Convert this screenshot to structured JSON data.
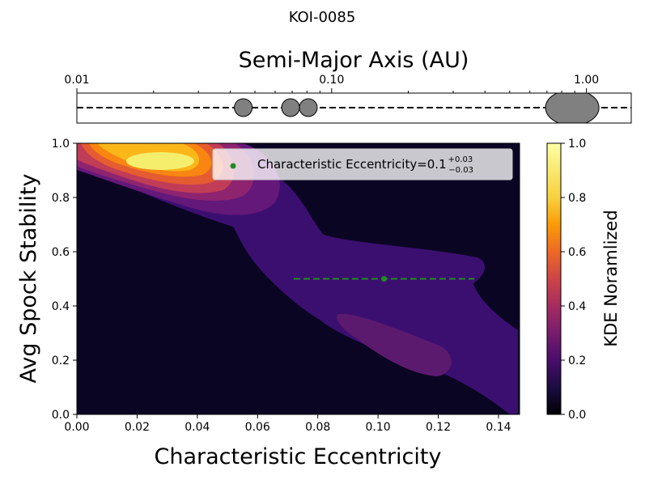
{
  "chart_data": [
    {
      "type": "scatter",
      "title": "KOI-0085",
      "xlabel": "Semi-Major Axis (AU)",
      "xscale": "log",
      "xlim": [
        0.01,
        1.5
      ],
      "xticks": [
        {
          "value": 0.01,
          "label": "0.01"
        },
        {
          "value": 0.1,
          "label": "0.10"
        },
        {
          "value": 1.0,
          "label": "1.00"
        }
      ],
      "planets": [
        {
          "a": 0.045,
          "size": "small"
        },
        {
          "a": 0.069,
          "size": "small"
        },
        {
          "a": 0.081,
          "size": "small"
        },
        {
          "a": 0.88,
          "size": "large"
        }
      ],
      "point_color": "#808080"
    },
    {
      "type": "heatmap",
      "xlabel": "Characteristic Eccentricity",
      "ylabel": "Avg Spock Stability",
      "xlim": [
        0.0,
        0.147
      ],
      "ylim": [
        0.0,
        1.0
      ],
      "xticks": [
        "0.00",
        "0.02",
        "0.04",
        "0.06",
        "0.08",
        "0.10",
        "0.12",
        "0.14"
      ],
      "yticks": [
        "0.0",
        "0.2",
        "0.4",
        "0.6",
        "0.8",
        "1.0"
      ],
      "colormap": "inferno",
      "point": {
        "x": 0.102,
        "y": 0.5,
        "xerr_minus": 0.03,
        "xerr_plus": 0.03,
        "color": "#228b22"
      },
      "legend": {
        "position": "top-right",
        "label": "Characteristic Eccentricity=0.1",
        "sup": "+0.03",
        "sub": "−0.03"
      },
      "colorbar": {
        "label": "KDE Noramlized",
        "ticks": [
          "0.0",
          "0.2",
          "0.4",
          "0.6",
          "0.8",
          "1.0"
        ]
      }
    }
  ]
}
